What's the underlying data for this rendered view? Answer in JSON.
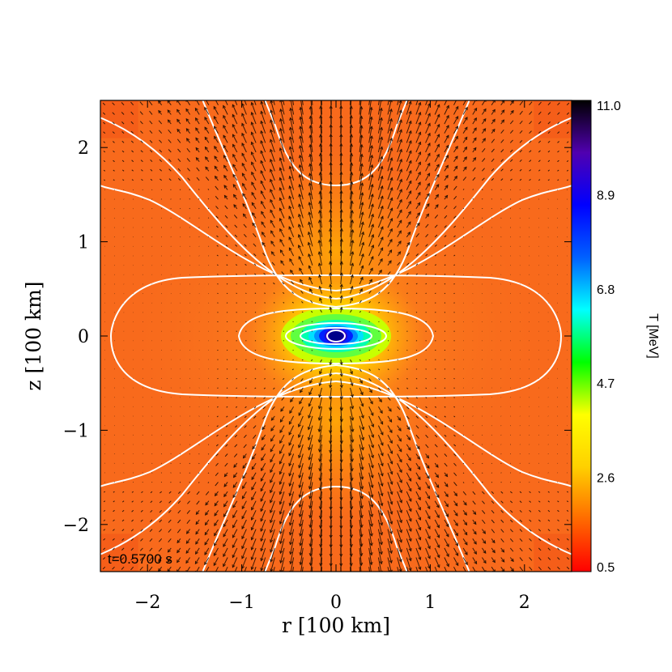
{
  "chart_data": {
    "type": "heatmap",
    "title": "",
    "xlabel": "r [100 km]",
    "ylabel": "z [100 km]",
    "xlim": [
      -2.5,
      2.5
    ],
    "ylim": [
      -2.5,
      2.5
    ],
    "xticks": [
      -2,
      -1,
      0,
      1,
      2
    ],
    "yticks": [
      -2,
      -1,
      0,
      1,
      2
    ],
    "xtick_labels": [
      "−2",
      "−1",
      "0",
      "1",
      "2"
    ],
    "ytick_labels": [
      "−2",
      "−1",
      "0",
      "1",
      "2"
    ],
    "annotation": "t=0.5700 s",
    "grid": false,
    "overlays": [
      "white contour lines",
      "black velocity vectors"
    ],
    "colorbar": {
      "label": "T [MeV]",
      "range": [
        0.5,
        11.0
      ],
      "tick_values": [
        0.5,
        2.6,
        4.7,
        6.8,
        8.9,
        11.0
      ],
      "tick_labels": [
        "0.5",
        "2.6",
        "4.7",
        "6.8",
        "8.9",
        "11.0"
      ],
      "colormap": [
        "#ff0000",
        "#ff6a00",
        "#ffd000",
        "#ffff00",
        "#00ff00",
        "#00ffff",
        "#0060ff",
        "#0000ff",
        "#5000b0",
        "#000000"
      ],
      "position": "right"
    },
    "colors": {
      "background_field": "#f86a1c",
      "contour": "#ffffff",
      "vectors": "#1a0a00"
    }
  }
}
